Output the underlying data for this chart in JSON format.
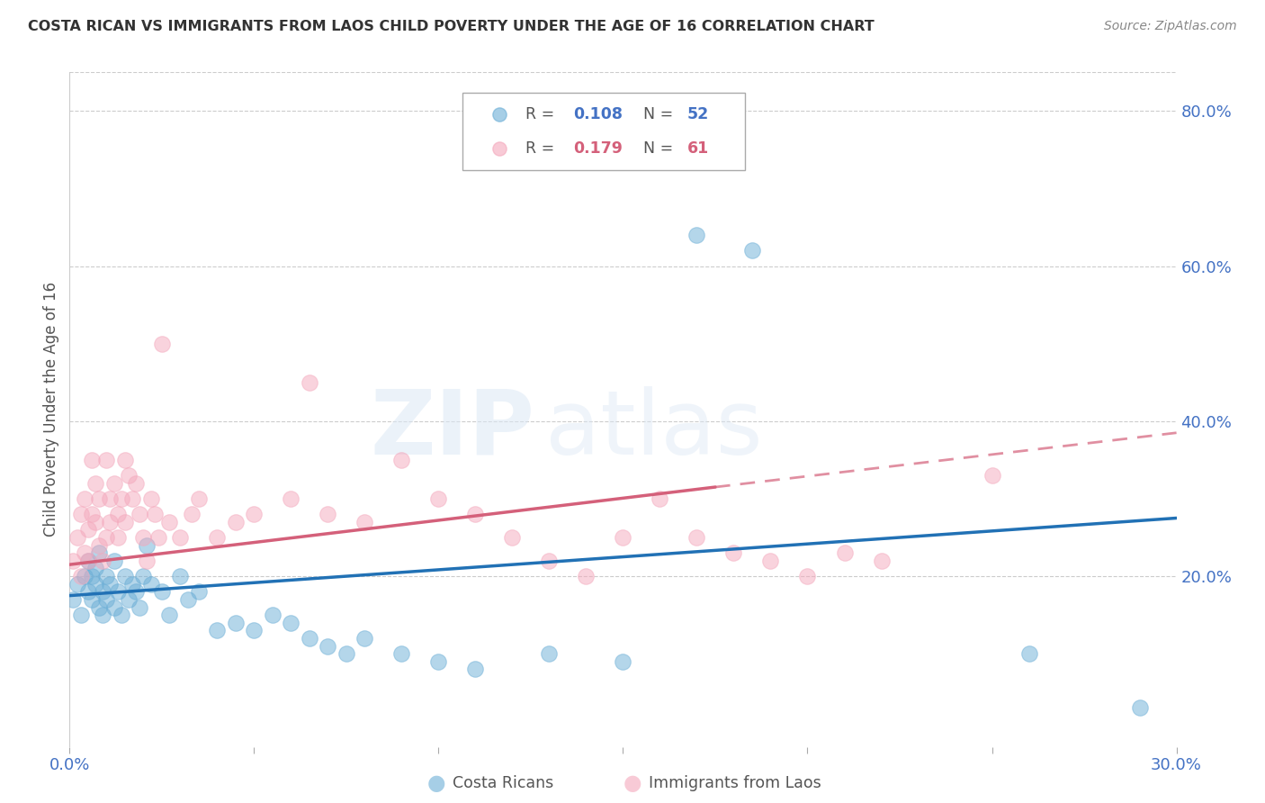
{
  "title": "COSTA RICAN VS IMMIGRANTS FROM LAOS CHILD POVERTY UNDER THE AGE OF 16 CORRELATION CHART",
  "source": "Source: ZipAtlas.com",
  "ylabel": "Child Poverty Under the Age of 16",
  "xlim": [
    0.0,
    0.3
  ],
  "ylim": [
    -0.02,
    0.85
  ],
  "x_ticks": [
    0.0,
    0.05,
    0.1,
    0.15,
    0.2,
    0.25,
    0.3
  ],
  "x_tick_labels": [
    "0.0%",
    "",
    "",
    "",
    "",
    "",
    "30.0%"
  ],
  "y_ticks_right": [
    0.2,
    0.4,
    0.6,
    0.8
  ],
  "y_tick_labels_right": [
    "20.0%",
    "40.0%",
    "60.0%",
    "80.0%"
  ],
  "legend_blue_r": "0.108",
  "legend_blue_n": "52",
  "legend_pink_r": "0.179",
  "legend_pink_n": "61",
  "legend_label_blue": "Costa Ricans",
  "legend_label_pink": "Immigrants from Laos",
  "blue_color": "#6baed6",
  "pink_color": "#f4a8bc",
  "trend_blue_color": "#2171b5",
  "trend_pink_color": "#d4607a",
  "watermark_zip": "ZIP",
  "watermark_atlas": "atlas",
  "blue_scatter_x": [
    0.001,
    0.002,
    0.003,
    0.004,
    0.005,
    0.005,
    0.006,
    0.006,
    0.007,
    0.007,
    0.008,
    0.008,
    0.009,
    0.009,
    0.01,
    0.01,
    0.011,
    0.012,
    0.012,
    0.013,
    0.014,
    0.015,
    0.016,
    0.017,
    0.018,
    0.019,
    0.02,
    0.021,
    0.022,
    0.025,
    0.027,
    0.03,
    0.032,
    0.035,
    0.04,
    0.045,
    0.05,
    0.055,
    0.06,
    0.065,
    0.07,
    0.075,
    0.08,
    0.09,
    0.1,
    0.11,
    0.13,
    0.15,
    0.17,
    0.185,
    0.26,
    0.29
  ],
  "blue_scatter_y": [
    0.17,
    0.19,
    0.15,
    0.2,
    0.22,
    0.18,
    0.17,
    0.2,
    0.19,
    0.21,
    0.16,
    0.23,
    0.18,
    0.15,
    0.2,
    0.17,
    0.19,
    0.22,
    0.16,
    0.18,
    0.15,
    0.2,
    0.17,
    0.19,
    0.18,
    0.16,
    0.2,
    0.24,
    0.19,
    0.18,
    0.15,
    0.2,
    0.17,
    0.18,
    0.13,
    0.14,
    0.13,
    0.15,
    0.14,
    0.12,
    0.11,
    0.1,
    0.12,
    0.1,
    0.09,
    0.08,
    0.1,
    0.09,
    0.64,
    0.62,
    0.1,
    0.03
  ],
  "pink_scatter_x": [
    0.001,
    0.002,
    0.003,
    0.003,
    0.004,
    0.004,
    0.005,
    0.005,
    0.006,
    0.006,
    0.007,
    0.007,
    0.008,
    0.008,
    0.009,
    0.01,
    0.01,
    0.011,
    0.011,
    0.012,
    0.013,
    0.013,
    0.014,
    0.015,
    0.015,
    0.016,
    0.017,
    0.018,
    0.019,
    0.02,
    0.021,
    0.022,
    0.023,
    0.024,
    0.025,
    0.027,
    0.03,
    0.033,
    0.035,
    0.04,
    0.045,
    0.05,
    0.06,
    0.065,
    0.07,
    0.08,
    0.09,
    0.1,
    0.11,
    0.12,
    0.13,
    0.14,
    0.15,
    0.16,
    0.17,
    0.18,
    0.19,
    0.2,
    0.21,
    0.22,
    0.25
  ],
  "pink_scatter_y": [
    0.22,
    0.25,
    0.2,
    0.28,
    0.3,
    0.23,
    0.26,
    0.22,
    0.35,
    0.28,
    0.32,
    0.27,
    0.24,
    0.3,
    0.22,
    0.25,
    0.35,
    0.3,
    0.27,
    0.32,
    0.25,
    0.28,
    0.3,
    0.35,
    0.27,
    0.33,
    0.3,
    0.32,
    0.28,
    0.25,
    0.22,
    0.3,
    0.28,
    0.25,
    0.5,
    0.27,
    0.25,
    0.28,
    0.3,
    0.25,
    0.27,
    0.28,
    0.3,
    0.45,
    0.28,
    0.27,
    0.35,
    0.3,
    0.28,
    0.25,
    0.22,
    0.2,
    0.25,
    0.3,
    0.25,
    0.23,
    0.22,
    0.2,
    0.23,
    0.22,
    0.33
  ],
  "trend_blue_x0": 0.0,
  "trend_blue_y0": 0.175,
  "trend_blue_x1": 0.3,
  "trend_blue_y1": 0.275,
  "trend_pink_solid_x0": 0.0,
  "trend_pink_solid_y0": 0.215,
  "trend_pink_solid_x1": 0.175,
  "trend_pink_solid_y1": 0.315,
  "trend_pink_dash_x0": 0.175,
  "trend_pink_dash_y0": 0.315,
  "trend_pink_dash_x1": 0.3,
  "trend_pink_dash_y1": 0.385
}
